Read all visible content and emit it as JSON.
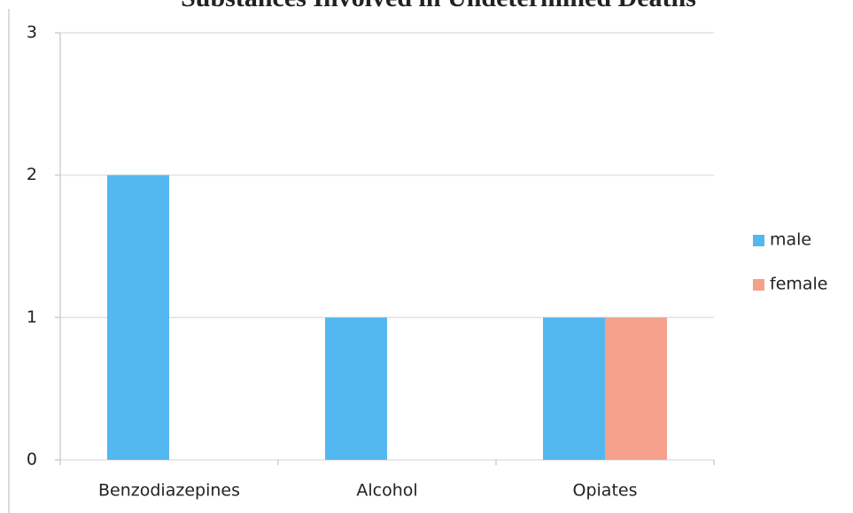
{
  "chart_data": {
    "type": "bar",
    "title": "Substances Involved in Undetermined Deaths",
    "categories": [
      "Benzodiazepines",
      "Alcohol",
      "Opiates"
    ],
    "series": [
      {
        "name": "male",
        "color": "#52b8ef",
        "values": [
          2,
          1,
          1
        ]
      },
      {
        "name": "female",
        "color": "#f4a08b",
        "values": [
          0,
          0,
          1
        ]
      }
    ],
    "ylim": [
      0,
      3
    ],
    "yticks": [
      0,
      1,
      2,
      3
    ],
    "grid": true,
    "legend": "right"
  }
}
